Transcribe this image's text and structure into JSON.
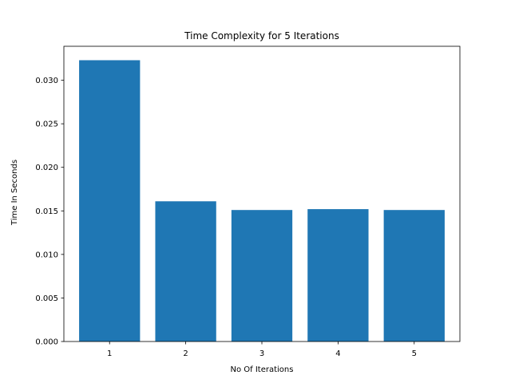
{
  "chart_data": {
    "type": "bar",
    "title": "Time Complexity for 5 Iterations",
    "xlabel": "No Of Iterations",
    "ylabel": "Time In Seconds",
    "categories": [
      "1",
      "2",
      "3",
      "4",
      "5"
    ],
    "values": [
      0.0323,
      0.0161,
      0.0151,
      0.0152,
      0.0151
    ],
    "ylim": [
      0,
      0.0339
    ],
    "yticks": [
      0.0,
      0.005,
      0.01,
      0.015,
      0.02,
      0.025,
      0.03
    ],
    "ytick_labels": [
      "0.000",
      "0.005",
      "0.010",
      "0.015",
      "0.020",
      "0.025",
      "0.030"
    ],
    "bar_color": "#1f77b4",
    "grid": false,
    "legend": "none"
  }
}
